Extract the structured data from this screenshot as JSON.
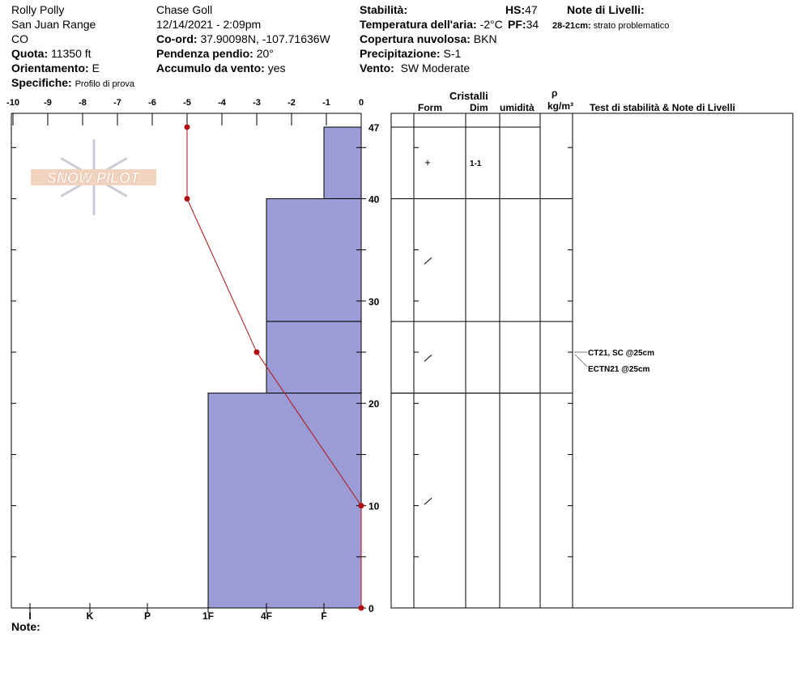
{
  "header": {
    "site": "Rolly Polly",
    "range": "San Juan Range",
    "state": "CO",
    "elevation_label": "Quota:",
    "elevation": "11350 ft",
    "aspect_label": "Orientamento:",
    "aspect": "E",
    "specifics_label": "Specifiche:",
    "specifics": "Profilo di prova",
    "observer": "Chase Goll",
    "datetime": "12/14/2021 - 2:09pm",
    "coord_label": "Co-ord:",
    "coord": "37.90098N, -107.71636W",
    "slope_label": "Pendenza pendio:",
    "slope": "20°",
    "wind_loading_label": "Accumulo da vento:",
    "wind_loading": "yes",
    "stability_label": "Stabilità:",
    "stability": "",
    "air_temp_label": "Temperatura dell'aria:",
    "air_temp": "-2°C",
    "sky_label": "Copertura nuvolosa:",
    "sky": "BKN",
    "precip_label": "Precipitazione:",
    "precip": "S-1",
    "wind_label": "Vento:",
    "wind": "SW Moderate",
    "hs_label": "HS:",
    "hs": "47",
    "pf_label": "PF:",
    "pf": "34",
    "layer_notes_label": "Note di Livelli:",
    "layer_note_range": "28-21cm:",
    "layer_note_text": "strato problematico"
  },
  "notes_label": "Note:",
  "logo_text": "SNOW PILOT",
  "table_headers": {
    "crystals": "Cristalli",
    "form": "Form",
    "size": "Dim",
    "moisture": "umidità",
    "rho": "ρ",
    "density": "kg/m³",
    "tests": "Test di stabilità & Note di Livelli"
  },
  "chart_data": {
    "type": "line",
    "temp_axis": {
      "ticks": [
        "-10",
        "-9",
        "-8",
        "-7",
        "-6",
        "-5",
        "-4",
        "-3",
        "-2",
        "-1",
        "0"
      ],
      "range": [
        -10,
        0
      ]
    },
    "height_axis": {
      "ticks": [
        "0",
        "10",
        "20",
        "30",
        "40",
        "47"
      ],
      "range": [
        0,
        47
      ]
    },
    "hardness_axis": {
      "ticks": [
        "I",
        "K",
        "P",
        "1F",
        "4F",
        "F"
      ]
    },
    "temperature_profile": [
      {
        "h": 47,
        "t": -5
      },
      {
        "h": 40,
        "t": -5
      },
      {
        "h": 25,
        "t": -3
      },
      {
        "h": 10,
        "t": 0
      },
      {
        "h": 0,
        "t": 0
      }
    ],
    "layers": [
      {
        "top": 47,
        "bottom": 40,
        "hardness": "F",
        "form": "+",
        "size": "1-1"
      },
      {
        "top": 40,
        "bottom": 28,
        "hardness": "4F",
        "form": "/",
        "size": ""
      },
      {
        "top": 28,
        "bottom": 21,
        "hardness": "4F",
        "form": "/",
        "size": ""
      },
      {
        "top": 21,
        "bottom": 0,
        "hardness": "1F",
        "form": "/",
        "size": ""
      }
    ],
    "tests": [
      "CT21, SC @25cm",
      "ECTN21 @25cm"
    ],
    "colors": {
      "hardness_fill": "#9b9bd6",
      "temperature": "#b01010"
    }
  }
}
